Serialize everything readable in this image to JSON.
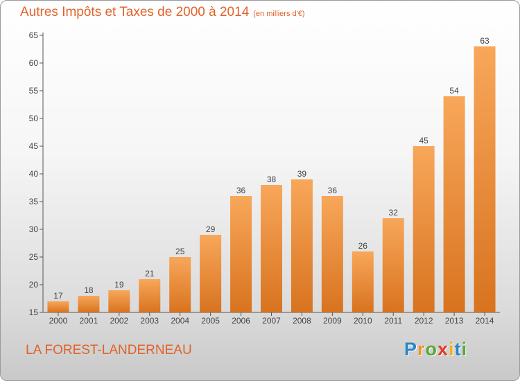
{
  "title": "Autres Impôts et Taxes de 2000 à 2014",
  "subtitle": "(en milliers d'€)",
  "commune": "LA FOREST-LANDERNEAU",
  "logo": {
    "letters": [
      "P",
      "r",
      "o",
      "x",
      "i",
      "t",
      "i"
    ],
    "colors": [
      "#2a86c8",
      "#f0922c",
      "#5aa83a",
      "#e03a2a",
      "#f2b11c",
      "#2a86c8",
      "#5aa83a"
    ]
  },
  "colors": {
    "bar_light": "#f8a75a",
    "bar_dark": "#d8731f",
    "title": "#e0622a"
  },
  "chart_data": {
    "type": "bar",
    "title": "Autres Impôts et Taxes de 2000 à 2014",
    "xlabel": "",
    "ylabel": "",
    "categories": [
      "2000",
      "2001",
      "2002",
      "2003",
      "2004",
      "2005",
      "2006",
      "2007",
      "2008",
      "2009",
      "2010",
      "2011",
      "2012",
      "2013",
      "2014"
    ],
    "values": [
      17,
      18,
      19,
      21,
      25,
      29,
      36,
      38,
      39,
      36,
      26,
      32,
      45,
      54,
      63
    ],
    "ylim": [
      15,
      65
    ],
    "yticks": [
      15,
      20,
      25,
      30,
      35,
      40,
      45,
      50,
      55,
      60,
      65
    ],
    "grid": false
  }
}
